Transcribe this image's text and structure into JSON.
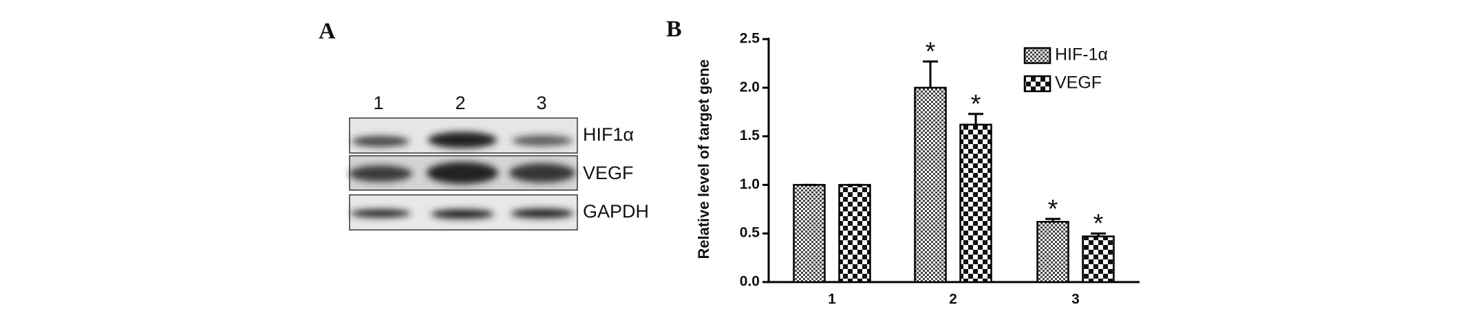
{
  "blot": {
    "panel_label": "A",
    "lanes": [
      "1",
      "2",
      "3"
    ],
    "rows": [
      "HIF1α",
      "VEGF",
      "GAPDH"
    ]
  },
  "chart_data": {
    "type": "bar",
    "panel_label": "B",
    "y_label": "Relative level of target gene",
    "categories": [
      "1",
      "2",
      "3"
    ],
    "series": [
      {
        "name": "HIF-1α",
        "pattern": "fine-checker",
        "values": [
          1.0,
          2.0,
          0.62
        ],
        "errors": [
          0,
          0.27,
          0.03
        ],
        "markers": [
          null,
          "*",
          "*"
        ]
      },
      {
        "name": "VEGF",
        "pattern": "coarse-checker",
        "values": [
          1.0,
          1.62,
          0.47
        ],
        "errors": [
          0,
          0.11,
          0.03
        ],
        "markers": [
          null,
          "*",
          "*"
        ]
      }
    ],
    "ylim": [
      0,
      2.5
    ],
    "yticks": [
      {
        "value": 0,
        "label": "0.0"
      },
      {
        "value": 0.5,
        "label": "0.5"
      },
      {
        "value": 1,
        "label": "1.0"
      },
      {
        "value": 1.5,
        "label": "1.5"
      },
      {
        "value": 2,
        "label": "2.0"
      },
      {
        "value": 2.5,
        "label": "2.5"
      }
    ],
    "legend": "upper right"
  }
}
